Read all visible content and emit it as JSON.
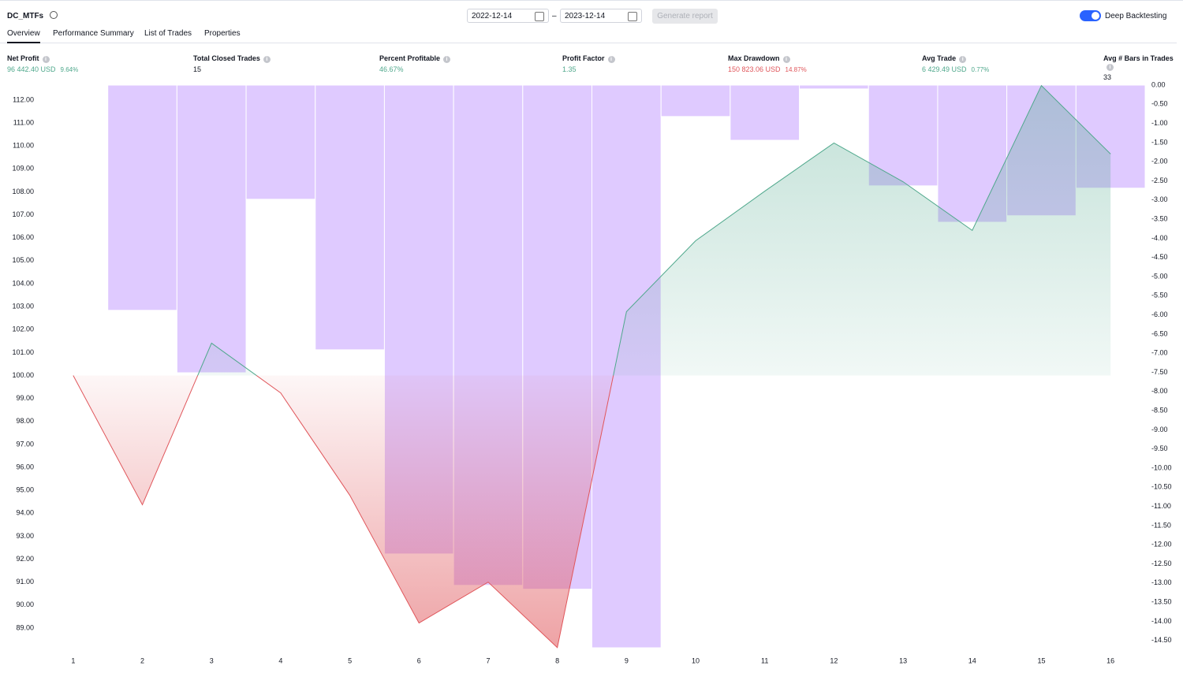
{
  "header": {
    "strategy": "DC_MTFs",
    "date_from": "2022-12-14",
    "date_to": "2023-12-14",
    "generate": "Generate report",
    "deep": "Deep Backtesting"
  },
  "tabs": [
    "Overview",
    "Performance Summary",
    "List of Trades",
    "Properties"
  ],
  "metrics": [
    {
      "label": "Net Profit",
      "value": "96 442.40 USD",
      "extra": "9.64%",
      "tone": "pos"
    },
    {
      "label": "Total Closed Trades",
      "value": "15",
      "tone": "neutral"
    },
    {
      "label": "Percent Profitable",
      "value": "46.67%",
      "tone": "pos"
    },
    {
      "label": "Profit Factor",
      "value": "1.35",
      "tone": "pos"
    },
    {
      "label": "Max Drawdown",
      "value": "150 823.06 USD",
      "extra": "14.87%",
      "tone": "neg"
    },
    {
      "label": "Avg Trade",
      "value": "6 429.49 USD",
      "extra": "0.77%",
      "tone": "pos"
    },
    {
      "label": "Avg # Bars in Trades",
      "value": "33",
      "tone": "neutral"
    }
  ],
  "chart_data": {
    "type": "combo",
    "categories": [
      "1",
      "2",
      "3",
      "4",
      "5",
      "6",
      "7",
      "8",
      "9",
      "10",
      "11",
      "12",
      "13",
      "14",
      "15",
      "16"
    ],
    "series": [
      {
        "type": "bar",
        "axis": "y2",
        "color": "#c9a6ff",
        "values": [
          0,
          -5.88,
          -7.51,
          -2.98,
          -6.91,
          -12.24,
          -13.06,
          -13.16,
          -14.69,
          -0.82,
          -1.44,
          -0.1,
          -2.63,
          -3.58,
          -3.41,
          -2.69
        ]
      },
      {
        "type": "line",
        "axis": "y",
        "color": "#4fa88c",
        "negative_color": "#e0565b",
        "values": [
          100,
          94.37,
          101.41,
          99.24,
          94.78,
          89.22,
          91.0,
          88.15,
          102.78,
          105.87,
          108.03,
          110.13,
          108.44,
          106.32,
          112.63,
          109.65
        ]
      }
    ],
    "ylim": [
      88.14,
      112.65
    ],
    "yticks": [
      {
        "value": 89,
        "label": "89.00"
      },
      {
        "value": 90,
        "label": "90.00"
      },
      {
        "value": 91,
        "label": "91.00"
      },
      {
        "value": 92,
        "label": "92.00"
      },
      {
        "value": 93,
        "label": "93.00"
      },
      {
        "value": 94,
        "label": "94.00"
      },
      {
        "value": 95,
        "label": "95.00"
      },
      {
        "value": 96,
        "label": "96.00"
      },
      {
        "value": 97,
        "label": "97.00"
      },
      {
        "value": 98,
        "label": "98.00"
      },
      {
        "value": 99,
        "label": "99.00"
      },
      {
        "value": 100,
        "label": "100.00"
      },
      {
        "value": 101,
        "label": "101.00"
      },
      {
        "value": 102,
        "label": "102.00"
      },
      {
        "value": 103,
        "label": "103.00"
      },
      {
        "value": 104,
        "label": "104.00"
      },
      {
        "value": 105,
        "label": "105.00"
      },
      {
        "value": 106,
        "label": "106.00"
      },
      {
        "value": 107,
        "label": "107.00"
      },
      {
        "value": 108,
        "label": "108.00"
      },
      {
        "value": 109,
        "label": "109.00"
      },
      {
        "value": 110,
        "label": "110.00"
      },
      {
        "value": 111,
        "label": "111.00"
      },
      {
        "value": 112,
        "label": "112.00"
      }
    ],
    "y2lim": [
      -14.69,
      0
    ],
    "y2ticks": [
      {
        "value": 0,
        "label": "0.00"
      },
      {
        "value": -0.5,
        "label": "-0.50"
      },
      {
        "value": -1,
        "label": "-1.00"
      },
      {
        "value": -1.5,
        "label": "-1.50"
      },
      {
        "value": -2,
        "label": "-2.00"
      },
      {
        "value": -2.5,
        "label": "-2.50"
      },
      {
        "value": -3,
        "label": "-3.00"
      },
      {
        "value": -3.5,
        "label": "-3.50"
      },
      {
        "value": -4,
        "label": "-4.00"
      },
      {
        "value": -4.5,
        "label": "-4.50"
      },
      {
        "value": -5,
        "label": "-5.00"
      },
      {
        "value": -5.5,
        "label": "-5.50"
      },
      {
        "value": -6,
        "label": "-6.00"
      },
      {
        "value": -6.5,
        "label": "-6.50"
      },
      {
        "value": -7,
        "label": "-7.00"
      },
      {
        "value": -7.5,
        "label": "-7.50"
      },
      {
        "value": -8,
        "label": "-8.00"
      },
      {
        "value": -8.5,
        "label": "-8.50"
      },
      {
        "value": -9,
        "label": "-9.00"
      },
      {
        "value": -9.5,
        "label": "-9.50"
      },
      {
        "value": -10,
        "label": "-10.00"
      },
      {
        "value": -10.5,
        "label": "-10.50"
      },
      {
        "value": -11,
        "label": "-11.00"
      },
      {
        "value": -11.5,
        "label": "-11.50"
      },
      {
        "value": -12,
        "label": "-12.00"
      },
      {
        "value": -12.5,
        "label": "-12.50"
      },
      {
        "value": -13,
        "label": "-13.00"
      },
      {
        "value": -13.5,
        "label": "-13.50"
      },
      {
        "value": -14,
        "label": "-14.00"
      },
      {
        "value": -14.5,
        "label": "-14.50"
      }
    ]
  }
}
